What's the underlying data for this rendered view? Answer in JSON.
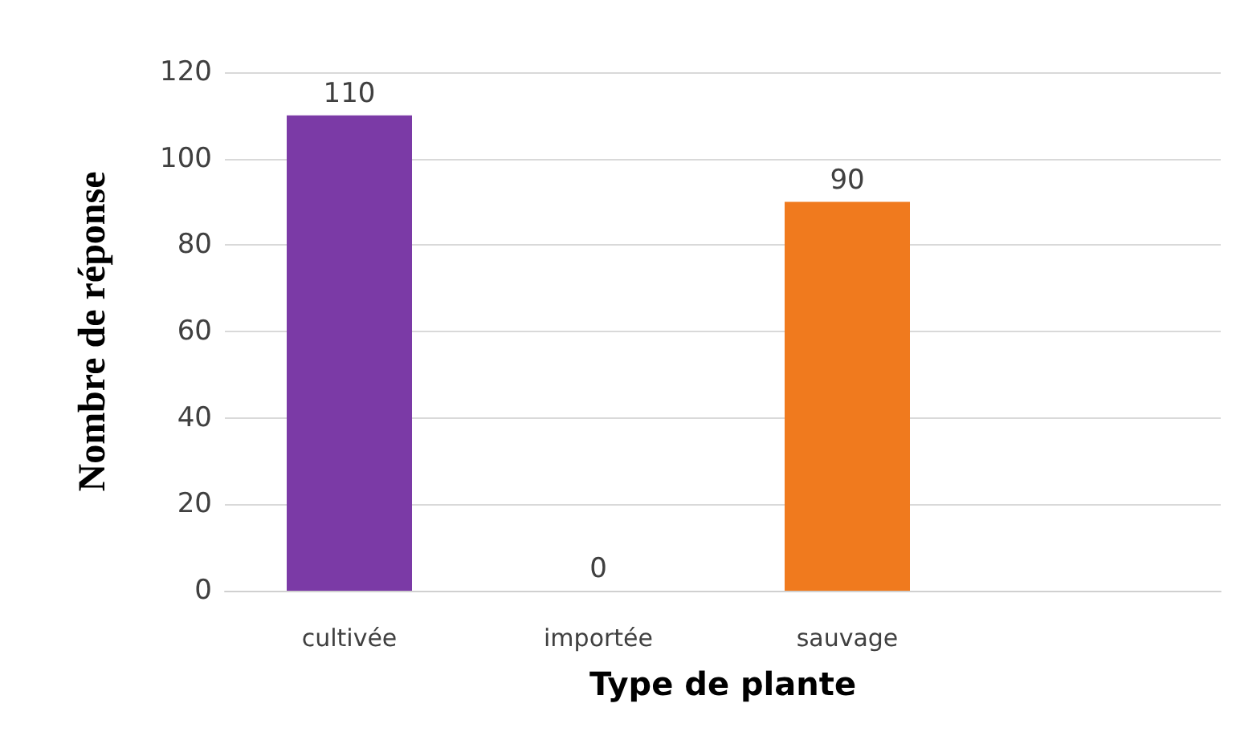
{
  "chart_data": {
    "type": "bar",
    "xlabel": "Type de plante",
    "ylabel": "Nombre de réponse",
    "categories": [
      "cultivée",
      "importée",
      "sauvage",
      null
    ],
    "values": [
      110,
      0,
      90,
      null
    ],
    "colors": [
      "#7b3aa6",
      "#7b3aa6",
      "#f07a1e",
      "#f07a1e"
    ],
    "ylim": [
      0,
      120
    ],
    "yticks": [
      0,
      20,
      40,
      60,
      80,
      100,
      120
    ],
    "grid": "y",
    "data_labels": true
  }
}
